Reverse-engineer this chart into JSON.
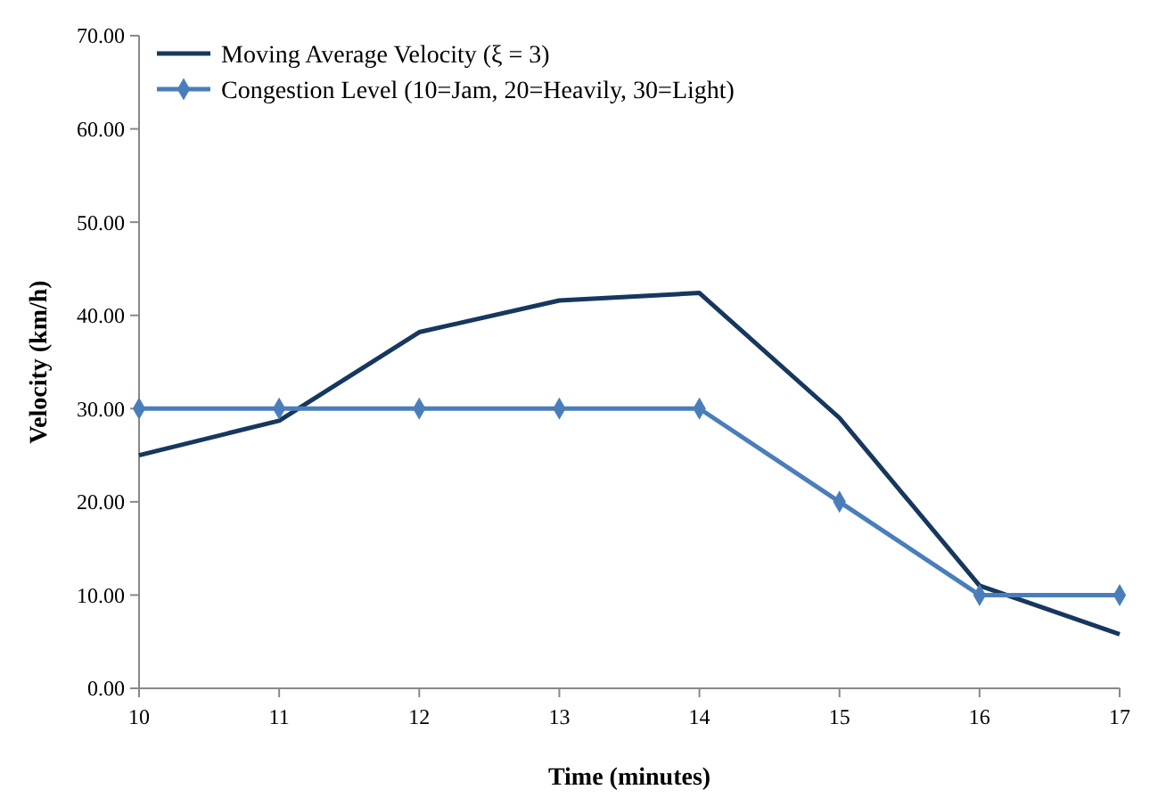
{
  "chart_data": {
    "type": "line",
    "xlabel": "Time (minutes)",
    "ylabel": "Velocity (km/h)",
    "x": [
      10,
      11,
      12,
      13,
      14,
      15,
      16,
      17
    ],
    "series": [
      {
        "name": "Moving Average Velocity (ξ = 3)",
        "color": "#17375e",
        "values": [
          25,
          28.7,
          38.2,
          41.6,
          42.4,
          29,
          11,
          5.8
        ],
        "marker": "none"
      },
      {
        "name": "Congestion Level (10=Jam, 20=Heavily, 30=Light)",
        "color": "#4a7ebb",
        "values": [
          30,
          30,
          30,
          30,
          30,
          20,
          10,
          10
        ],
        "marker": "diamond"
      }
    ],
    "xlim": [
      10,
      17
    ],
    "xticks": [
      10,
      11,
      12,
      13,
      14,
      15,
      16,
      17
    ],
    "ylim": [
      0,
      70
    ],
    "yticks": [
      {
        "value": 0,
        "label": "0.00"
      },
      {
        "value": 10,
        "label": "10.00"
      },
      {
        "value": 20,
        "label": "20.00"
      },
      {
        "value": 30,
        "label": "30.00"
      },
      {
        "value": 40,
        "label": "40.00"
      },
      {
        "value": 50,
        "label": "50.00"
      },
      {
        "value": 60,
        "label": "60.00"
      },
      {
        "value": 70,
        "label": "70.00"
      }
    ],
    "grid": false,
    "legend": "top left",
    "line_style": "solid"
  }
}
